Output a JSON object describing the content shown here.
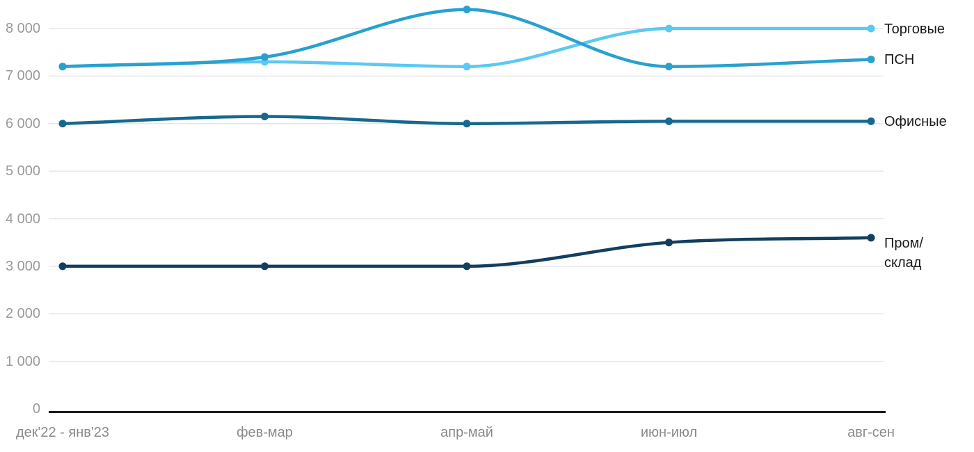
{
  "chart_data": {
    "type": "line",
    "categories": [
      "дек'22 - янв'23",
      "фев-мар",
      "апр-май",
      "июн-июл",
      "авг-сен"
    ],
    "series": [
      {
        "name": "Торговые",
        "color": "#5bc9f2",
        "values": [
          7200,
          7300,
          7200,
          8000,
          8000
        ]
      },
      {
        "name": "ПСН",
        "color": "#29a1cf",
        "values": [
          7200,
          7400,
          8400,
          7200,
          7350
        ]
      },
      {
        "name": "Офисные",
        "color": "#17688f",
        "values": [
          6000,
          6150,
          6000,
          6050,
          6050
        ]
      },
      {
        "name": "Пром/склад",
        "color": "#123f5e",
        "values": [
          3000,
          3000,
          3000,
          3500,
          3600
        ]
      }
    ],
    "y_ticks": [
      "0",
      "1 000",
      "2 000",
      "3 000",
      "4 000",
      "5 000",
      "6 000",
      "7 000",
      "8 000"
    ],
    "ylim": [
      0,
      8000
    ],
    "title": "",
    "xlabel": "",
    "ylabel": "",
    "grid": "horizontal",
    "legend_position": "right",
    "colors": {
      "axis": "#1c1c1c",
      "gridline": "#e6e6e6",
      "y_tick_text": "#9a9a9a",
      "x_tick_text": "#8a8a8a",
      "legend_text": "#1a1a1a",
      "background": "#ffffff"
    }
  }
}
